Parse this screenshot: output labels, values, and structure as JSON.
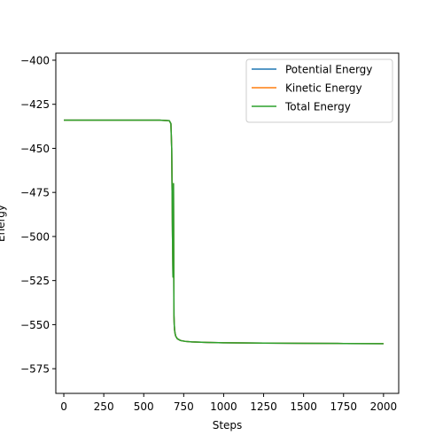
{
  "chart_data": {
    "type": "line",
    "title": "",
    "xlabel": "Steps",
    "ylabel": "Energy",
    "xlim": [
      -50,
      2095
    ],
    "ylim": [
      -589,
      -396
    ],
    "xticks": [
      0,
      250,
      500,
      750,
      1000,
      1250,
      1500,
      1750,
      2000
    ],
    "xtick_labels": [
      "0",
      "250",
      "500",
      "750",
      "1000",
      "1250",
      "1500",
      "1750",
      "2000"
    ],
    "yticks": [
      -400,
      -425,
      -450,
      -475,
      -500,
      -525,
      -550,
      -575
    ],
    "ytick_labels": [
      "−400",
      "−425",
      "−450",
      "−475",
      "−500",
      "−525",
      "−550",
      "−575"
    ],
    "grid": false,
    "legend_position": "top-right",
    "series": [
      {
        "name": "Potential Energy",
        "color": "#1f77b4",
        "x": [
          0,
          300,
          600,
          660,
          670,
          675,
          680,
          683,
          686,
          689,
          691,
          693,
          696,
          700,
          710,
          730,
          760,
          800,
          900,
          1000,
          1250,
          1500,
          1750,
          2000
        ],
        "y": [
          -434,
          -434,
          -434,
          -434.3,
          -436,
          -450,
          -500,
          -523,
          -470,
          -545,
          -550,
          -553,
          -555,
          -556.5,
          -558,
          -559,
          -559.5,
          -559.8,
          -560.1,
          -560.3,
          -560.5,
          -560.6,
          -560.7,
          -560.8
        ]
      },
      {
        "name": "Kinetic Energy",
        "color": "#ff7f0e",
        "x": [
          0,
          300,
          600,
          660,
          670,
          675,
          680,
          683,
          686,
          689,
          691,
          693,
          696,
          700,
          710,
          730,
          760,
          800,
          900,
          1000,
          1250,
          1500,
          1750,
          2000
        ],
        "y": [
          -434,
          -434,
          -434,
          -434.3,
          -436,
          -450,
          -500,
          -523,
          -470,
          -545,
          -550,
          -553,
          -555,
          -556.5,
          -558,
          -559,
          -559.5,
          -559.8,
          -560.1,
          -560.3,
          -560.5,
          -560.6,
          -560.7,
          -560.8
        ]
      },
      {
        "name": "Total Energy",
        "color": "#2ca02c",
        "x": [
          0,
          300,
          600,
          660,
          670,
          675,
          680,
          683,
          686,
          689,
          691,
          693,
          696,
          700,
          710,
          730,
          760,
          800,
          900,
          1000,
          1250,
          1500,
          1750,
          2000
        ],
        "y": [
          -434,
          -434,
          -434,
          -434.3,
          -436,
          -450,
          -500,
          -523,
          -470,
          -545,
          -550,
          -553,
          -555,
          -556.5,
          -558,
          -559,
          -559.5,
          -559.8,
          -560.1,
          -560.3,
          -560.5,
          -560.6,
          -560.7,
          -560.8
        ]
      }
    ]
  }
}
